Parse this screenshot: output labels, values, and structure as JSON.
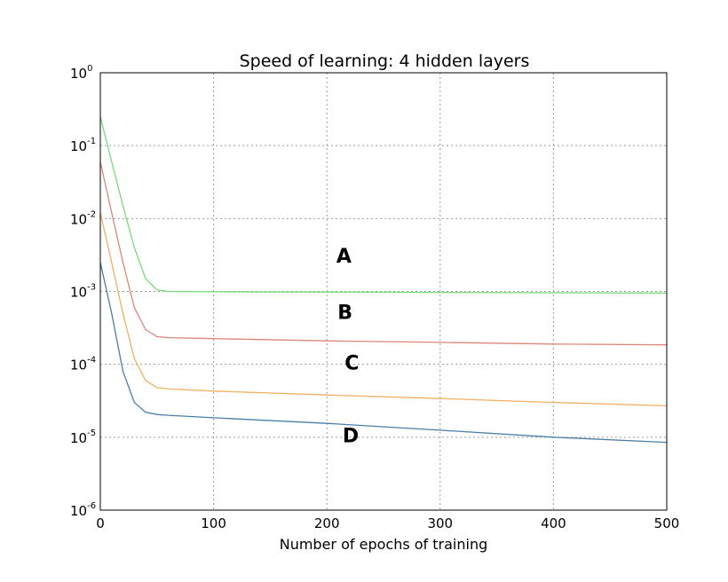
{
  "chart_data": {
    "type": "line",
    "title": "Speed of learning: 4 hidden layers",
    "xlabel": "Number of epochs of training",
    "ylabel": "",
    "xlim": [
      0,
      500
    ],
    "ylim": [
      1e-06,
      1
    ],
    "yscale": "log",
    "grid": true,
    "x_ticks": [
      0,
      100,
      200,
      300,
      400,
      500
    ],
    "y_ticks": [
      {
        "value": 1,
        "base": "10",
        "exp": "0"
      },
      {
        "value": 0.1,
        "base": "10",
        "exp": "-1"
      },
      {
        "value": 0.01,
        "base": "10",
        "exp": "-2"
      },
      {
        "value": 0.001,
        "base": "10",
        "exp": "-3"
      },
      {
        "value": 0.0001,
        "base": "10",
        "exp": "-4"
      },
      {
        "value": 1e-05,
        "base": "10",
        "exp": "-5"
      },
      {
        "value": 1e-06,
        "base": "10",
        "exp": "-6"
      }
    ],
    "series": [
      {
        "color": "#77dd77",
        "x": [
          0,
          10,
          20,
          30,
          40,
          50,
          60,
          100,
          200,
          300,
          400,
          500
        ],
        "y": [
          0.25,
          0.06,
          0.015,
          0.004,
          0.0015,
          0.00105,
          0.001,
          0.00099,
          0.00098,
          0.00097,
          0.00096,
          0.00095
        ]
      },
      {
        "color": "#e0857a",
        "x": [
          0,
          10,
          20,
          30,
          40,
          50,
          60,
          100,
          200,
          300,
          400,
          500
        ],
        "y": [
          0.06,
          0.012,
          0.0025,
          0.0006,
          0.0003,
          0.00024,
          0.000232,
          0.000225,
          0.00021,
          0.0002,
          0.00019,
          0.000185
        ]
      },
      {
        "color": "#f0b060",
        "x": [
          0,
          10,
          20,
          30,
          40,
          50,
          60,
          100,
          200,
          300,
          400,
          500
        ],
        "y": [
          0.012,
          0.0025,
          0.0005,
          0.00012,
          6e-05,
          4.8e-05,
          4.6e-05,
          4.3e-05,
          3.8e-05,
          3.4e-05,
          3e-05,
          2.7e-05
        ]
      },
      {
        "color": "#4a7ea8",
        "x": [
          0,
          10,
          20,
          30,
          40,
          50,
          60,
          100,
          200,
          300,
          400,
          500
        ],
        "y": [
          0.0025,
          0.0005,
          8e-05,
          3e-05,
          2.2e-05,
          2.05e-05,
          2e-05,
          1.85e-05,
          1.55e-05,
          1.25e-05,
          1e-05,
          8.5e-06
        ]
      }
    ],
    "annotations": [
      {
        "text": "A",
        "x": 215,
        "y": 0.0025
      },
      {
        "text": "B",
        "x": 216,
        "y": 0.00042
      },
      {
        "text": "C",
        "x": 222,
        "y": 8.5e-05
      },
      {
        "text": "D",
        "x": 221,
        "y": 8.5e-06
      }
    ]
  }
}
